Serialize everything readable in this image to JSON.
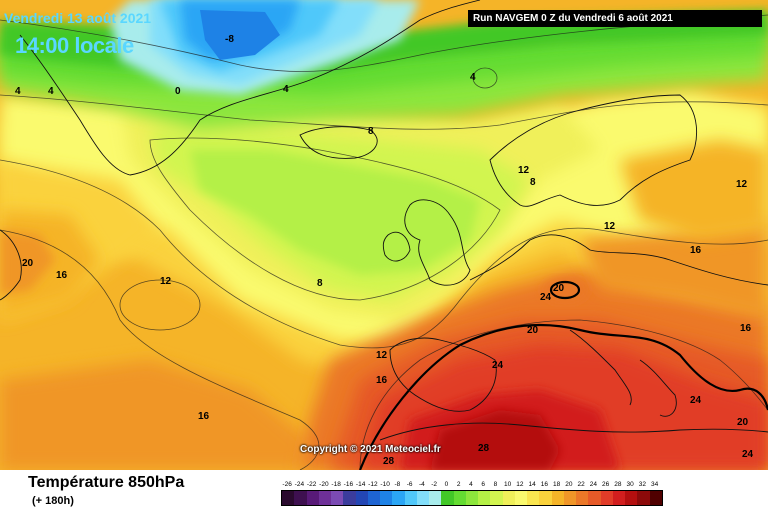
{
  "header": {
    "date": "Vendredi 13 août 2021",
    "time": "14:00 locale",
    "run": "Run NAVGEM 0 Z du Vendredi 6 août 2021"
  },
  "copyright": "Copyright © 2021 Meteociel.fr",
  "footer": {
    "title": "Température 850hPa",
    "subtitle": "(+ 180h)"
  },
  "legend": {
    "labels": [
      "-26",
      "-24",
      "-22",
      "-20",
      "-18",
      "-16",
      "-14",
      "-12",
      "-10",
      "-8",
      "-6",
      "-4",
      "-2",
      "0",
      "2",
      "4",
      "6",
      "8",
      "10",
      "12",
      "14",
      "16",
      "18",
      "20",
      "22",
      "24",
      "26",
      "28",
      "30",
      "32",
      "34"
    ],
    "colors": [
      "#2a0a2e",
      "#3e1050",
      "#581a78",
      "#6e3098",
      "#7b4bb4",
      "#3b3c9c",
      "#2346b4",
      "#1e64d2",
      "#1e82e6",
      "#2ba6f5",
      "#50c8fa",
      "#82defa",
      "#a8ecec",
      "#42c828",
      "#64dc32",
      "#8ce63c",
      "#b4f046",
      "#d2f550",
      "#f0f05a",
      "#fafa6e",
      "#fae650",
      "#fad23c",
      "#f5b428",
      "#f09628",
      "#eb7828",
      "#e65a28",
      "#e13c28",
      "#d21e1e",
      "#b40f0f",
      "#8c0a0a",
      "#500000"
    ]
  },
  "map_labels": [
    "-8",
    "0",
    "4",
    "4",
    "4",
    "4",
    "8",
    "8",
    "8",
    "12",
    "12",
    "12",
    "12",
    "12",
    "16",
    "16",
    "16",
    "16",
    "16",
    "20",
    "20",
    "20",
    "20",
    "24",
    "24",
    "24",
    "24",
    "28",
    "28"
  ]
}
